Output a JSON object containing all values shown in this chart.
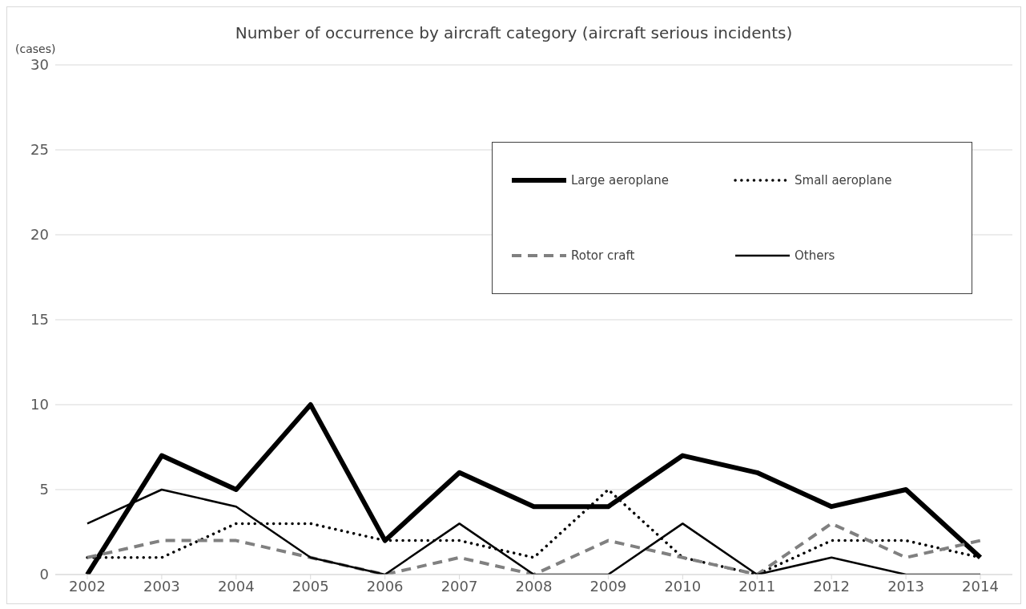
{
  "chart_data": {
    "type": "line",
    "title": "Number of occurrence by aircraft category (aircraft serious incidents)",
    "ylabel": "(cases)",
    "categories": [
      "2002",
      "2003",
      "2004",
      "2005",
      "2006",
      "2007",
      "2008",
      "2009",
      "2010",
      "2011",
      "2012",
      "2013",
      "2014"
    ],
    "series": [
      {
        "name": "Large aeroplane",
        "color": "#000000",
        "line_style": "solid",
        "values": [
          0,
          7,
          5,
          10,
          2,
          6,
          4,
          4,
          7,
          6,
          4,
          5,
          1
        ]
      },
      {
        "name": "Small aeroplane",
        "color": "#000000",
        "line_style": "dotted",
        "values": [
          1,
          1,
          3,
          3,
          2,
          2,
          1,
          5,
          1,
          0,
          2,
          2,
          1
        ]
      },
      {
        "name": "Rotor craft",
        "color": "#808080",
        "line_style": "dashed",
        "values": [
          1,
          2,
          2,
          1,
          0,
          1,
          0,
          2,
          1,
          0,
          3,
          1,
          2
        ]
      },
      {
        "name": "Others",
        "color": "#000000",
        "line_style": "solid",
        "values": [
          3,
          5,
          4,
          1,
          0,
          3,
          0,
          0,
          3,
          0,
          1,
          0,
          0
        ]
      }
    ],
    "ylim": [
      0,
      30
    ],
    "yticks": [
      0,
      5,
      10,
      15,
      20,
      25,
      30
    ],
    "grid": "y",
    "legend": "top right",
    "marker": "none"
  }
}
